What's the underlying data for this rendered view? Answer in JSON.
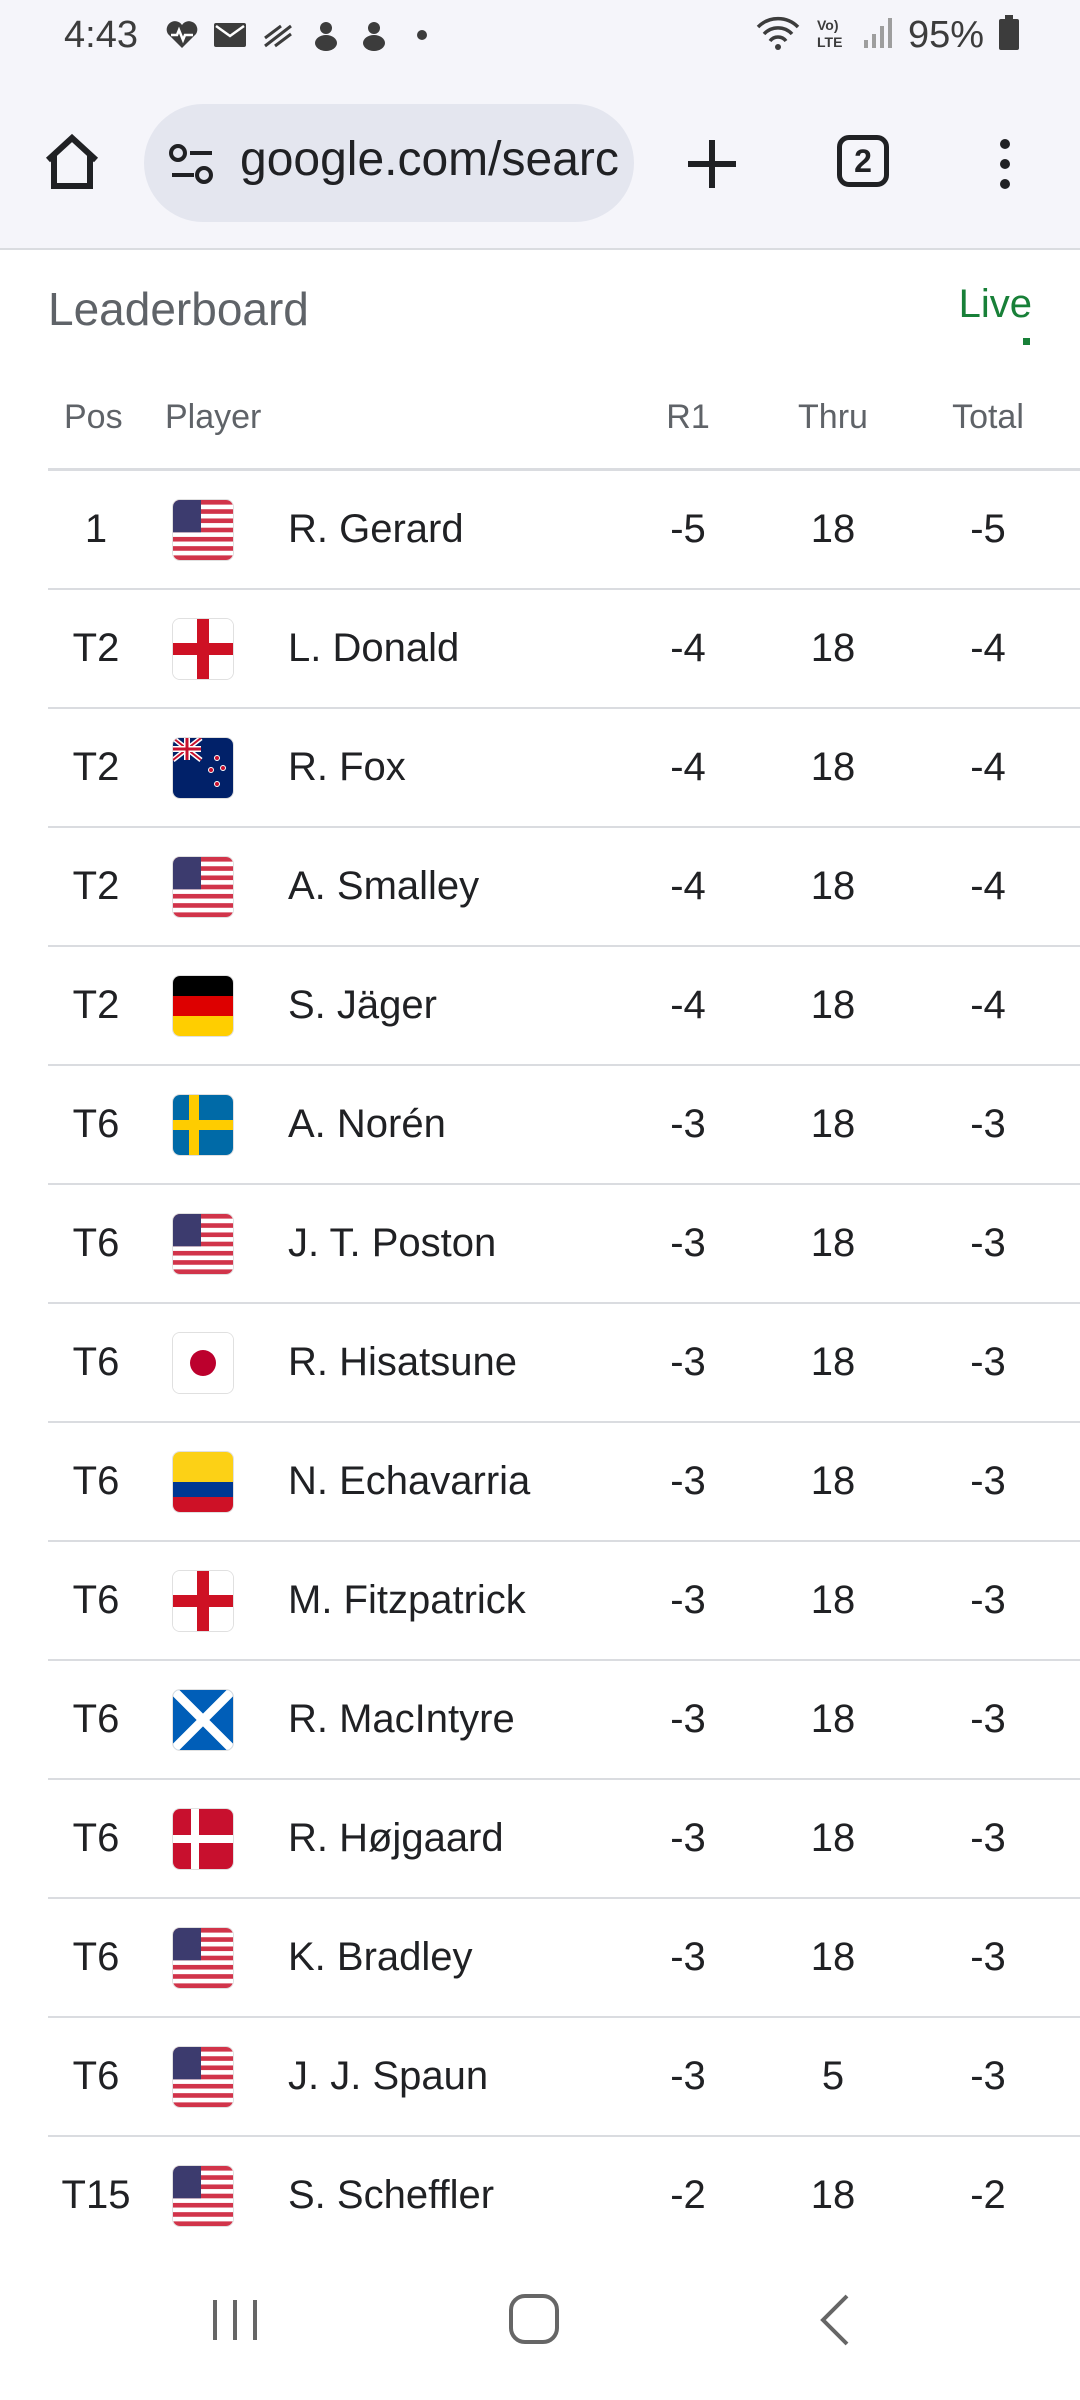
{
  "status_bar": {
    "time": "4:43",
    "battery": "95%",
    "icons_left": [
      "heart-rate-icon",
      "mail-icon",
      "signal-alt-icon",
      "app-icon",
      "app-icon",
      "dot-icon"
    ],
    "icons_right": [
      "wifi-icon",
      "volte-icon",
      "cell-signal-icon",
      "battery-icon"
    ]
  },
  "browser": {
    "url": "google.com/search",
    "tab_count": "2"
  },
  "leaderboard": {
    "title": "Leaderboard",
    "live_label": "Live",
    "columns": {
      "pos": "Pos",
      "player": "Player",
      "r1": "R1",
      "thru": "Thru",
      "total": "Total"
    },
    "rows": [
      {
        "pos": "1",
        "flag": "usa",
        "player": "R. Gerard",
        "r1": "-5",
        "thru": "18",
        "total": "-5"
      },
      {
        "pos": "T2",
        "flag": "england",
        "player": "L. Donald",
        "r1": "-4",
        "thru": "18",
        "total": "-4"
      },
      {
        "pos": "T2",
        "flag": "newzealand",
        "player": "R. Fox",
        "r1": "-4",
        "thru": "18",
        "total": "-4"
      },
      {
        "pos": "T2",
        "flag": "usa",
        "player": "A. Smalley",
        "r1": "-4",
        "thru": "18",
        "total": "-4"
      },
      {
        "pos": "T2",
        "flag": "germany",
        "player": "S. Jäger",
        "r1": "-4",
        "thru": "18",
        "total": "-4"
      },
      {
        "pos": "T6",
        "flag": "sweden",
        "player": "A. Norén",
        "r1": "-3",
        "thru": "18",
        "total": "-3"
      },
      {
        "pos": "T6",
        "flag": "usa",
        "player": "J. T. Poston",
        "r1": "-3",
        "thru": "18",
        "total": "-3"
      },
      {
        "pos": "T6",
        "flag": "japan",
        "player": "R. Hisatsune",
        "r1": "-3",
        "thru": "18",
        "total": "-3"
      },
      {
        "pos": "T6",
        "flag": "colombia",
        "player": "N. Echavarria",
        "r1": "-3",
        "thru": "18",
        "total": "-3"
      },
      {
        "pos": "T6",
        "flag": "england",
        "player": "M. Fitzpatrick",
        "r1": "-3",
        "thru": "18",
        "total": "-3"
      },
      {
        "pos": "T6",
        "flag": "scotland",
        "player": "R. MacIntyre",
        "r1": "-3",
        "thru": "18",
        "total": "-3"
      },
      {
        "pos": "T6",
        "flag": "denmark",
        "player": "R. Højgaard",
        "r1": "-3",
        "thru": "18",
        "total": "-3"
      },
      {
        "pos": "T6",
        "flag": "usa",
        "player": "K. Bradley",
        "r1": "-3",
        "thru": "18",
        "total": "-3"
      },
      {
        "pos": "T6",
        "flag": "usa",
        "player": "J. J. Spaun",
        "r1": "-3",
        "thru": "5",
        "total": "-3"
      },
      {
        "pos": "T15",
        "flag": "usa",
        "player": "S. Scheffler",
        "r1": "-2",
        "thru": "18",
        "total": "-2"
      }
    ]
  },
  "colors": {
    "live": "#188038",
    "divider": "#dadce0",
    "toolbar_bg": "#f5f5fa"
  }
}
